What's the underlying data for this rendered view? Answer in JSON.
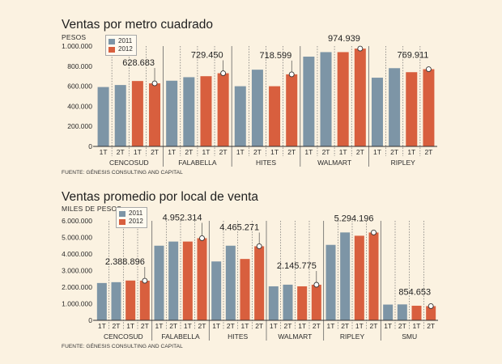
{
  "colors": {
    "y2011": "#7d95a6",
    "y2012": "#d85f3e"
  },
  "chart_data": [
    {
      "type": "bar",
      "title": "Ventas por metro cuadrado",
      "ylabel": "PESOS",
      "ylim": [
        0,
        1000000
      ],
      "yticks": [
        0,
        200000,
        400000,
        600000,
        800000,
        1000000
      ],
      "ytick_labels": [
        "0",
        "200.000",
        "400.000",
        "600.000",
        "800.000",
        "1.000.000"
      ],
      "legend": [
        {
          "name": "2011",
          "color": "#7d95a6"
        },
        {
          "name": "2012",
          "color": "#d85f3e"
        }
      ],
      "groups": [
        {
          "name": "CENCOSUD",
          "quarters": [
            "1T",
            "2T",
            "1T",
            "2T"
          ],
          "years": [
            "2011",
            "2011",
            "2012",
            "2012"
          ],
          "values": [
            592000,
            612000,
            652000,
            628683
          ],
          "highlight_label": "628.683"
        },
        {
          "name": "FALABELLA",
          "quarters": [
            "1T",
            "2T",
            "1T",
            "2T"
          ],
          "years": [
            "2011",
            "2011",
            "2012",
            "2012"
          ],
          "values": [
            655000,
            690000,
            700000,
            729450
          ],
          "highlight_label": "729.450"
        },
        {
          "name": "HITES",
          "quarters": [
            "1T",
            "2T",
            "1T",
            "2T"
          ],
          "years": [
            "2011",
            "2011",
            "2012",
            "2012"
          ],
          "values": [
            600000,
            765000,
            600000,
            718599
          ],
          "highlight_label": "718.599"
        },
        {
          "name": "WALMART",
          "quarters": [
            "1T",
            "2T",
            "1T",
            "2T"
          ],
          "years": [
            "2011",
            "2011",
            "2012",
            "2012"
          ],
          "values": [
            895000,
            940000,
            940000,
            974939
          ],
          "highlight_label": "974.939"
        },
        {
          "name": "RIPLEY",
          "quarters": [
            "1T",
            "2T",
            "1T",
            "2T"
          ],
          "years": [
            "2011",
            "2011",
            "2012",
            "2012"
          ],
          "values": [
            685000,
            780000,
            740000,
            769911
          ],
          "highlight_label": "769.911"
        }
      ],
      "source": "FUENTE: GÉNESIS CONSULTING AND CAPITAL"
    },
    {
      "type": "bar",
      "title": "Ventas promedio por local de venta",
      "ylabel": "MILES DE PESOS",
      "ylim": [
        0,
        6000000
      ],
      "yticks": [
        0,
        1000000,
        2000000,
        3000000,
        4000000,
        5000000,
        6000000
      ],
      "ytick_labels": [
        "0",
        "1.000.000",
        "2.000.000",
        "3.000.000",
        "4.000.000",
        "5.000.000",
        "6.000.000"
      ],
      "legend": [
        {
          "name": "2011",
          "color": "#7d95a6"
        },
        {
          "name": "2012",
          "color": "#d85f3e"
        }
      ],
      "groups": [
        {
          "name": "CENCOSUD",
          "quarters": [
            "1T",
            "2T",
            "1T",
            "2T"
          ],
          "years": [
            "2011",
            "2011",
            "2012",
            "2012"
          ],
          "values": [
            2250000,
            2300000,
            2400000,
            2388896
          ],
          "highlight_label": "2.388.896"
        },
        {
          "name": "FALABELLA",
          "quarters": [
            "1T",
            "2T",
            "1T",
            "2T"
          ],
          "years": [
            "2011",
            "2011",
            "2012",
            "2012"
          ],
          "values": [
            4500000,
            4750000,
            4750000,
            4952314
          ],
          "highlight_label": "4.952.314"
        },
        {
          "name": "HITES",
          "quarters": [
            "1T",
            "2T",
            "1T",
            "2T"
          ],
          "years": [
            "2011",
            "2011",
            "2012",
            "2012"
          ],
          "values": [
            3550000,
            4500000,
            3700000,
            4465271
          ],
          "highlight_label": "4.465.271"
        },
        {
          "name": "WALMART",
          "quarters": [
            "1T",
            "2T",
            "1T",
            "2T"
          ],
          "years": [
            "2011",
            "2011",
            "2012",
            "2012"
          ],
          "values": [
            2050000,
            2150000,
            2050000,
            2145775
          ],
          "highlight_label": "2.145.775"
        },
        {
          "name": "RIPLEY",
          "quarters": [
            "1T",
            "2T",
            "1T",
            "2T"
          ],
          "years": [
            "2011",
            "2011",
            "2012",
            "2012"
          ],
          "values": [
            4550000,
            5300000,
            5100000,
            5294196
          ],
          "highlight_label": "5.294.196"
        },
        {
          "name": "SMU",
          "quarters": [
            "1T",
            "2T",
            "1T",
            "2T"
          ],
          "years": [
            "2011",
            "2011",
            "2012",
            "2012"
          ],
          "values": [
            950000,
            960000,
            880000,
            854653
          ],
          "highlight_label": "854.653"
        }
      ],
      "source": "FUENTE: GÉNESIS CONSULTING AND CAPITAL"
    }
  ]
}
